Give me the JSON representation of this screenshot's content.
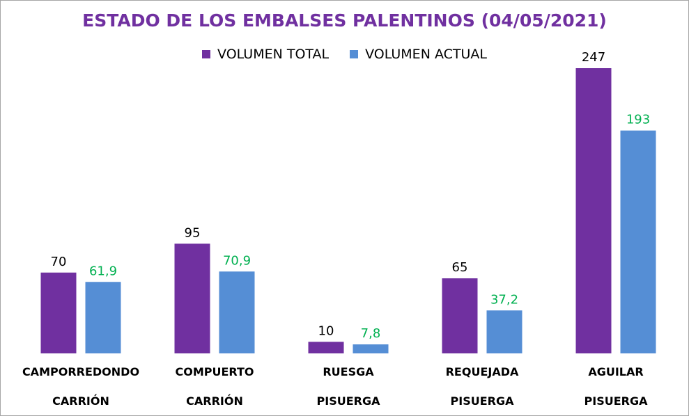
{
  "chart_data": {
    "type": "bar",
    "title": "ESTADO DE LOS EMBALSES PALENTINOS (04/05/2021)",
    "categories": [
      {
        "name": "CAMPORREDONDO",
        "river": "CARRIÓN"
      },
      {
        "name": "COMPUERTO",
        "river": "CARRIÓN"
      },
      {
        "name": "RUESGA",
        "river": "PISUERGA"
      },
      {
        "name": "REQUEJADA",
        "river": "PISUERGA"
      },
      {
        "name": "AGUILAR",
        "river": "PISUERGA"
      }
    ],
    "series": [
      {
        "name": "VOLUMEN TOTAL",
        "color": "#7030a0",
        "label_color": "#000000",
        "values": [
          70,
          95,
          10,
          65,
          247
        ],
        "labels": [
          "70",
          "95",
          "10",
          "65",
          "247"
        ]
      },
      {
        "name": "VOLUMEN ACTUAL",
        "color": "#558ed5",
        "label_color": "#00b050",
        "values": [
          61.9,
          70.9,
          7.8,
          37.2,
          193
        ],
        "labels": [
          "61,9",
          "70,9",
          "7,8",
          "37,2",
          "193"
        ]
      }
    ],
    "ylim": [
      0,
      247
    ],
    "legend": "top",
    "grid": false,
    "xlabel": "",
    "ylabel": ""
  }
}
